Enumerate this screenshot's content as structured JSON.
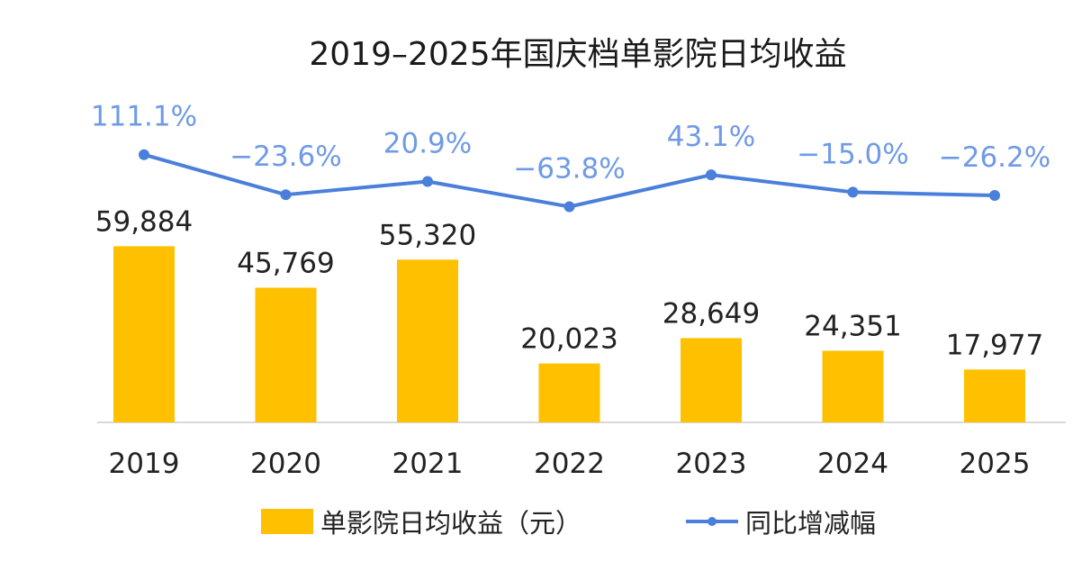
{
  "chart_data": {
    "type": "bar",
    "title": "2019–2025年国庆档单影院日均收益",
    "categories": [
      "2019",
      "2020",
      "2021",
      "2022",
      "2023",
      "2024",
      "2025"
    ],
    "series": [
      {
        "name": "单影院日均收益（元）",
        "type": "bar",
        "values": [
          59884,
          45769,
          55320,
          20023,
          28649,
          24351,
          17977
        ],
        "labels": [
          "59,884",
          "45,769",
          "55,320",
          "20,023",
          "28,649",
          "24,351",
          "17,977"
        ],
        "color": "#FFC000"
      },
      {
        "name": "同比增减幅",
        "type": "line",
        "values": [
          111.1,
          -23.6,
          20.9,
          -63.8,
          43.1,
          -15.0,
          -26.2
        ],
        "labels": [
          "111.1%",
          "−23.6%",
          "20.9%",
          "−63.8%",
          "43.1%",
          "−15.0%",
          "−26.2%"
        ],
        "color": "#4A7FDB",
        "label_color": "#6F9AE6"
      }
    ],
    "ylim": [
      0,
      60000
    ],
    "grid": false,
    "legend": "bottom-center"
  }
}
